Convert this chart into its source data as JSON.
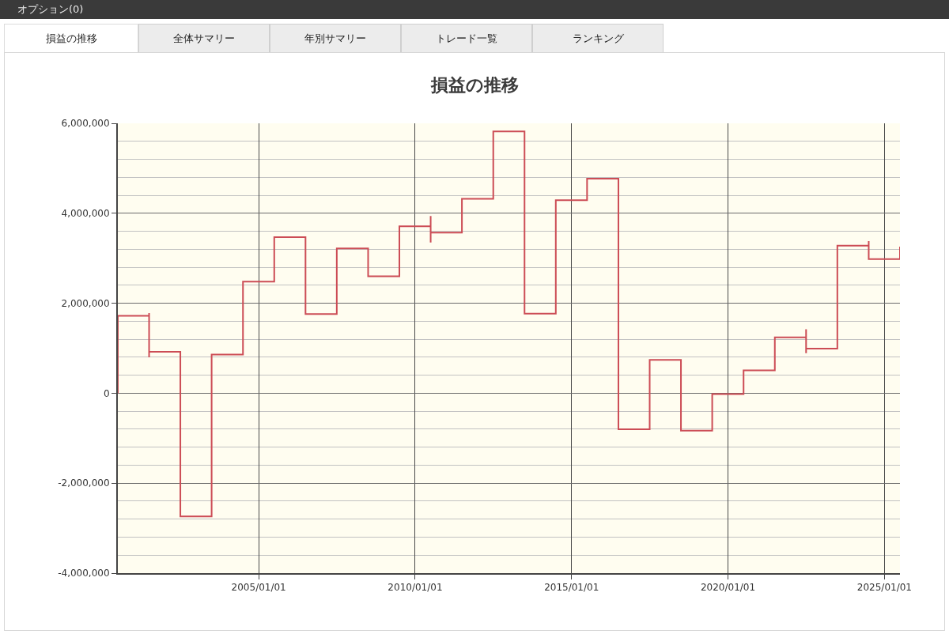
{
  "chart_data": {
    "type": "step",
    "title": "損益の推移",
    "annotations": [
      "オプション(0)",
      "損益の推移",
      "全体サマリー",
      "年別サマリー",
      "トレード一覧",
      "ランキング"
    ],
    "x": [
      "2000-07-01",
      "2000-07-01",
      "2001-07-01",
      "2001-07-01",
      "2001-07-01",
      "2002-07-01",
      "2003-07-01",
      "2004-07-01",
      "2005-07-01",
      "2006-07-01",
      "2007-07-01",
      "2008-07-01",
      "2009-07-01",
      "2010-07-01",
      "2010-07-01",
      "2010-07-01",
      "2011-07-01",
      "2012-07-01",
      "2013-07-01",
      "2014-07-01",
      "2015-07-01",
      "2016-07-01",
      "2017-07-01",
      "2018-07-01",
      "2019-07-01",
      "2020-07-01",
      "2021-07-01",
      "2022-07-01",
      "2022-07-01",
      "2022-07-01",
      "2023-07-01",
      "2024-07-01",
      "2024-07-01",
      "2025-07-01"
    ],
    "values": [
      0,
      1720000,
      1780000,
      800000,
      920000,
      -2740000,
      860000,
      2480000,
      3470000,
      1760000,
      3220000,
      2600000,
      3710000,
      3940000,
      3350000,
      3570000,
      4320000,
      5820000,
      1770000,
      4290000,
      4770000,
      -800000,
      740000,
      -830000,
      -20000,
      510000,
      1240000,
      1420000,
      890000,
      990000,
      3280000,
      3380000,
      2980000,
      3260000
    ],
    "color": "#cc4c55",
    "xlim": [
      "2000-07-01",
      "2025-07-01"
    ],
    "xticks": [
      {
        "value": "2005-01-01",
        "label": "2005/01/01"
      },
      {
        "value": "2010-01-01",
        "label": "2010/01/01"
      },
      {
        "value": "2015-01-01",
        "label": "2015/01/01"
      },
      {
        "value": "2020-01-01",
        "label": "2020/01/01"
      },
      {
        "value": "2025-01-01",
        "label": "2025/01/01"
      }
    ],
    "ylim": [
      -4000000,
      6000000
    ],
    "yticks": [
      {
        "value": -4000000,
        "label": "-4,000,000"
      },
      {
        "value": -3600000,
        "label": null
      },
      {
        "value": -3200000,
        "label": null
      },
      {
        "value": -2800000,
        "label": null
      },
      {
        "value": -2400000,
        "label": null
      },
      {
        "value": -2000000,
        "label": "-2,000,000"
      },
      {
        "value": -1600000,
        "label": null
      },
      {
        "value": -1200000,
        "label": null
      },
      {
        "value": -800000,
        "label": null
      },
      {
        "value": -400000,
        "label": null
      },
      0,
      {
        "value": 400000,
        "label": null
      },
      {
        "value": 800000,
        "label": null
      },
      {
        "value": 1200000,
        "label": null
      },
      {
        "value": 1600000,
        "label": null
      },
      {
        "value": 2000000,
        "label": "2,000,000"
      },
      {
        "value": 2400000,
        "label": null
      },
      {
        "value": 2800000,
        "label": null
      },
      {
        "value": 3200000,
        "label": null
      },
      {
        "value": 3600000,
        "label": null
      },
      {
        "value": 4000000,
        "label": "4,000,000"
      },
      {
        "value": 4400000,
        "label": null
      },
      {
        "value": 4800000,
        "label": null
      },
      {
        "value": 5200000,
        "label": null
      },
      {
        "value": 5600000,
        "label": null
      },
      {
        "value": 6000000,
        "label": "6,000,000"
      }
    ],
    "grid": true
  }
}
